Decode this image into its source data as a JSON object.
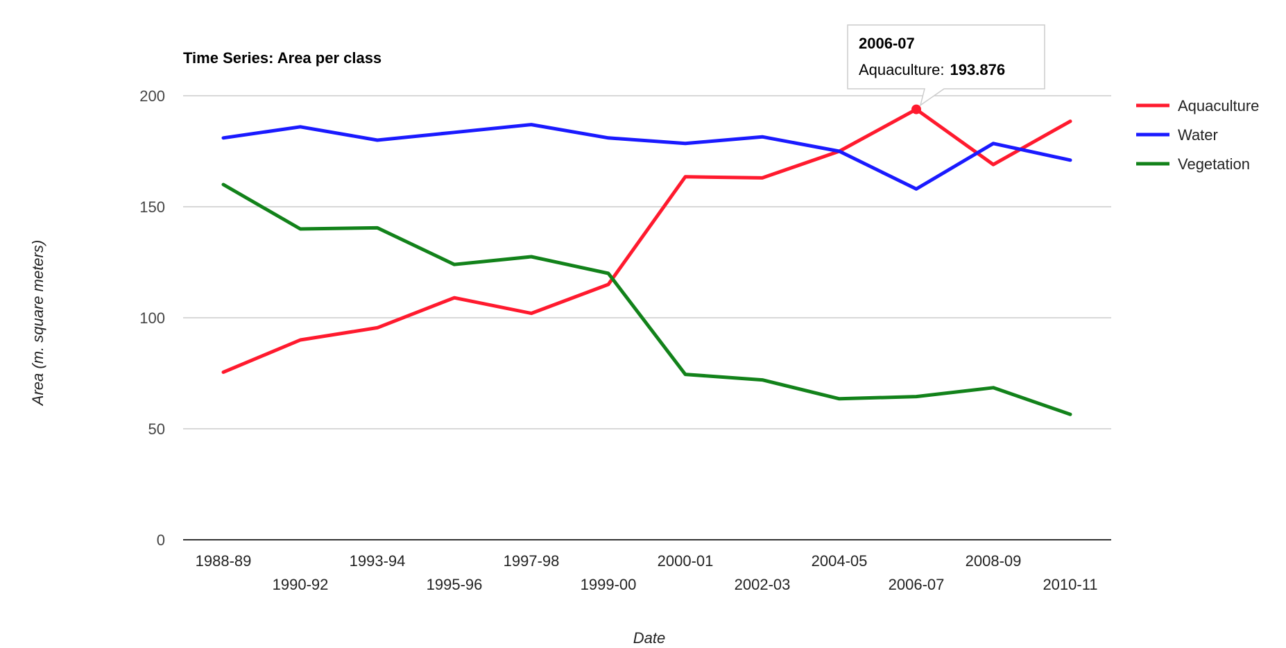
{
  "chart_data": {
    "type": "line",
    "title": "Time Series: Area per class",
    "xlabel": "Date",
    "ylabel": "Area (m. square meters)",
    "ylim": [
      0,
      200
    ],
    "yticks": [
      "0",
      "50",
      "100",
      "150",
      "200"
    ],
    "grid": true,
    "legend_position": "right",
    "categories": [
      "1988-89",
      "1990-92",
      "1993-94",
      "1995-96",
      "1997-98",
      "1999-00",
      "2000-01",
      "2002-03",
      "2004-05",
      "2006-07",
      "2008-09",
      "2010-11"
    ],
    "series": [
      {
        "name": "Aquaculture",
        "color": "#ff1a2e",
        "values": [
          75.5,
          90,
          95.5,
          109,
          102,
          115,
          163.5,
          163,
          175,
          193.876,
          169,
          188.5
        ]
      },
      {
        "name": "Water",
        "color": "#1a1aff",
        "values": [
          181,
          186,
          180,
          183.5,
          187,
          181,
          178.5,
          181.5,
          175,
          158,
          178.5,
          171
        ]
      },
      {
        "name": "Vegetation",
        "color": "#12821a",
        "values": [
          160,
          140,
          140.5,
          124,
          127.5,
          120,
          74.5,
          72,
          63.5,
          64.5,
          68.5,
          56.5
        ]
      }
    ],
    "tooltip": {
      "title": "2006-07",
      "series": "Aquaculture",
      "label": "Aquaculture:",
      "value": "193.876",
      "category_index": 9,
      "series_index": 0
    }
  }
}
